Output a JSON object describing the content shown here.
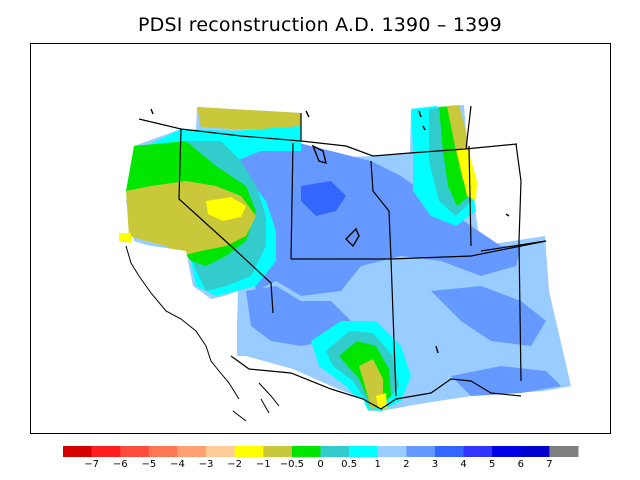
{
  "title": "PDSI reconstruction A.D. 1390 – 1399",
  "colorbar": {
    "colors": [
      "#d40000",
      "#ff1f1f",
      "#ff4d3d",
      "#ff7652",
      "#ff9f72",
      "#ffcc99",
      "#ffff00",
      "#c8c83a",
      "#00e600",
      "#33cccc",
      "#00ffff",
      "#99ccff",
      "#6699ff",
      "#3366ff",
      "#3333ff",
      "#0000e6",
      "#0000cc",
      "#7f7f7f"
    ],
    "labels": [
      "−7",
      "−6",
      "−5",
      "−4",
      "−3",
      "−2",
      "−1",
      "−0.5",
      "0",
      "0.5",
      "1",
      "2",
      "3",
      "4",
      "5",
      "6",
      "7"
    ]
  },
  "legend_colors": {
    "dry_yellow": "#ffff00",
    "olive": "#c8c83a",
    "green": "#00e600",
    "teal": "#33cccc",
    "cyan": "#00ffff",
    "light_blue": "#99ccff",
    "mid_blue": "#6699ff",
    "deep_blue": "#3366ff"
  }
}
